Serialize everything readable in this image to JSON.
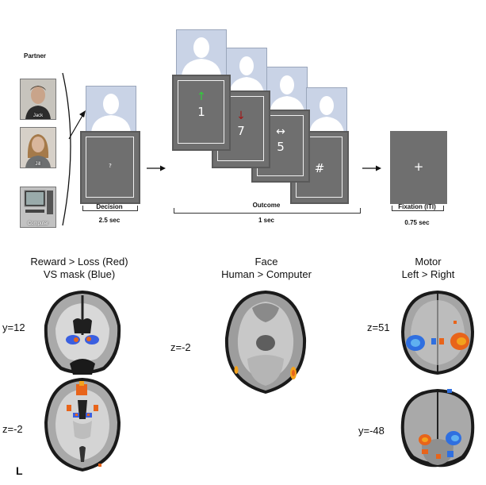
{
  "partner": {
    "heading": "Partner",
    "options": [
      {
        "caption": "Jack"
      },
      {
        "caption": "Jill"
      },
      {
        "caption": "Computer"
      }
    ]
  },
  "decision": {
    "screen_text": "?",
    "label": "Decision",
    "duration": "2.5 sec"
  },
  "outcome": {
    "screens": [
      {
        "arrow": "↑",
        "arrow_color": "#2fd13a",
        "number": "1"
      },
      {
        "arrow": "↓",
        "arrow_color": "#a01818",
        "number": "7"
      },
      {
        "arrow": "↔",
        "arrow_color": "#ffffff",
        "number": "5"
      },
      {
        "arrow": "",
        "arrow_color": "#ffffff",
        "number": "#"
      }
    ],
    "label": "Outcome",
    "duration": "1 sec"
  },
  "fixation": {
    "screen_text": "+",
    "label": "Fixation (ITI)",
    "duration": "0.75 sec"
  },
  "panels": [
    {
      "title_line1": "Reward > Loss (Red)",
      "title_line2": "VS mask (Blue)",
      "coords": [
        "y=12",
        "z=-2"
      ]
    },
    {
      "title_line1": "Face",
      "title_line2": "Human > Computer",
      "coords": [
        "z=-2"
      ]
    },
    {
      "title_line1": "Motor",
      "title_line2": "Left > Right",
      "coords": [
        "z=51",
        "y=-48"
      ]
    }
  ],
  "side_label": "L",
  "colors": {
    "screen_gray": "#6f6f6f",
    "silhouette_bg": "#c9d3e6",
    "activation_red": "#e8641a",
    "activation_blue": "#2f5fe0"
  }
}
